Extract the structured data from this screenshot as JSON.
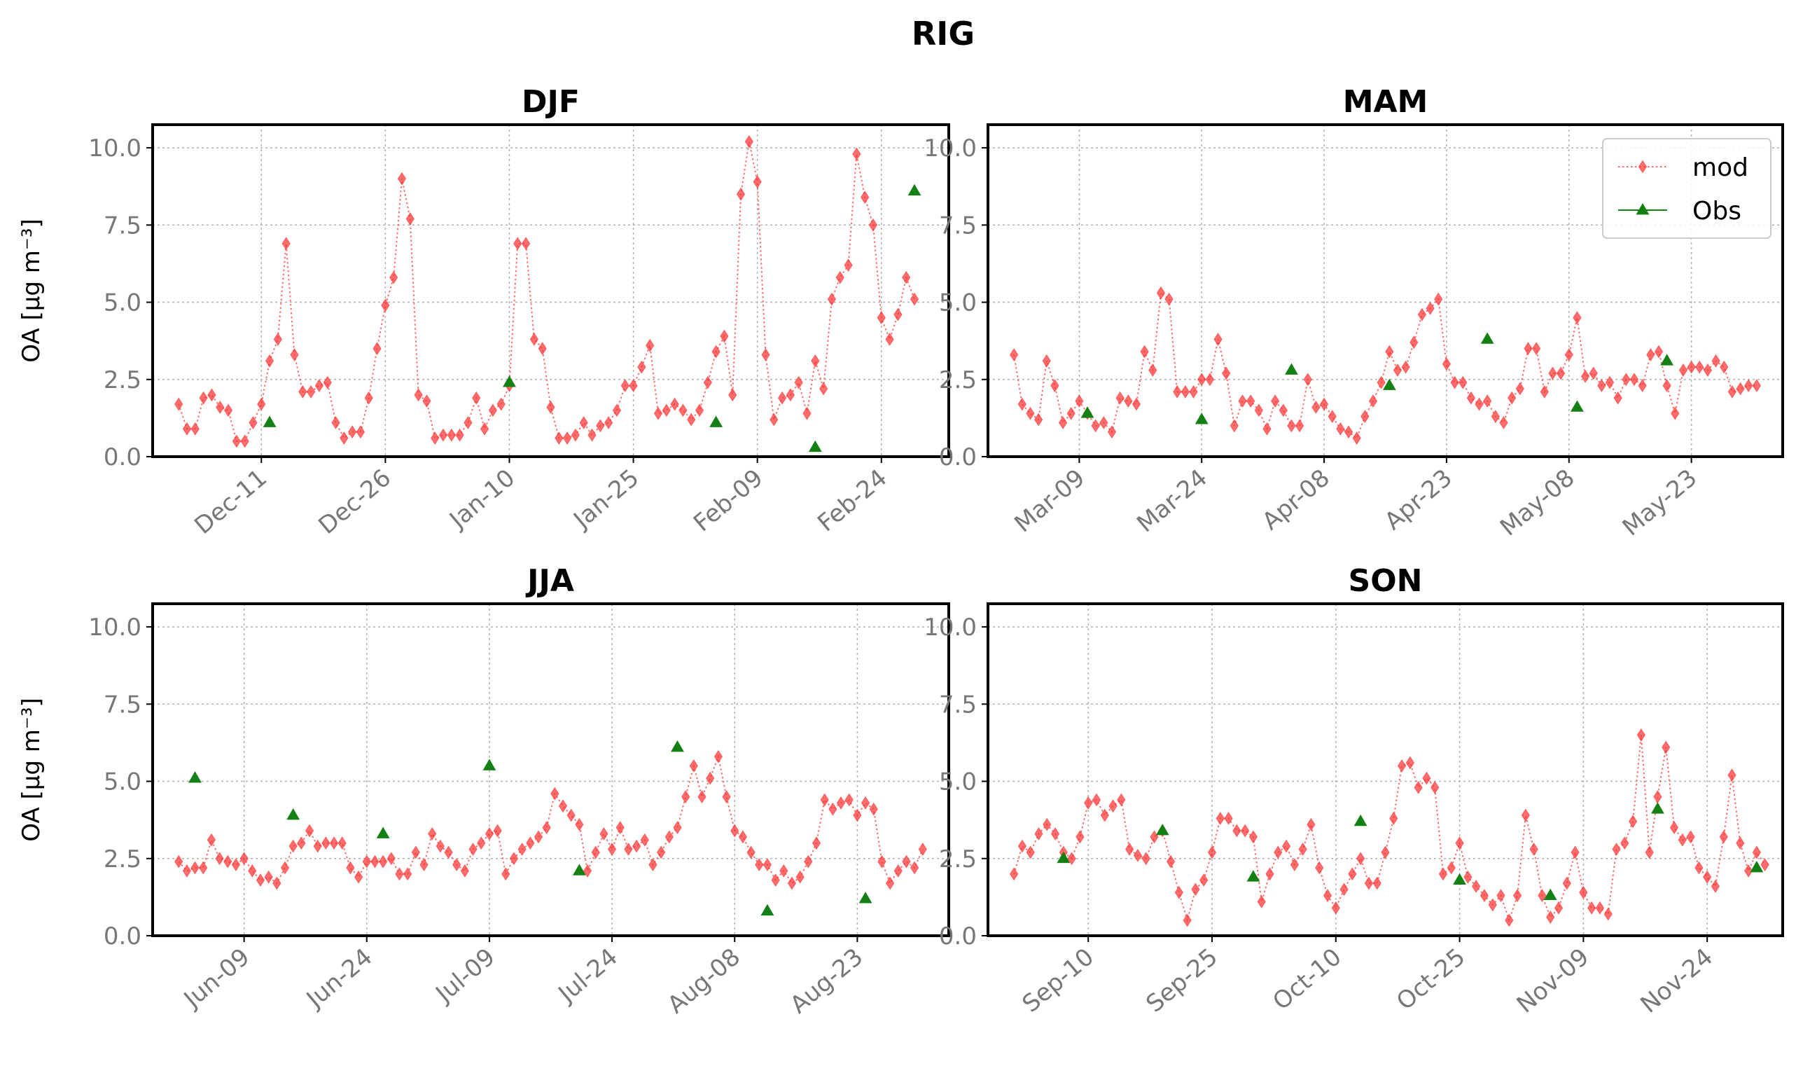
{
  "suptitle": "RIG",
  "legend": {
    "mod_label": "mod",
    "obs_label": "Obs",
    "placement": "top-right of MAM panel"
  },
  "colors": {
    "mod": "#ff3030",
    "obs": "#138013",
    "frame": "#000000",
    "grid": "#b0b0b0",
    "tick": "#777777"
  },
  "chart_data": [
    {
      "panel": "DJF",
      "type": "line",
      "title": "DJF",
      "ylabel": "OA [μg m⁻³]",
      "ylim": [
        0,
        10.75
      ],
      "yticks": [
        "0.0",
        "2.5",
        "5.0",
        "7.5",
        "10.0"
      ],
      "grid": true,
      "xlim": [
        "2019-12-01",
        "2020-02-29"
      ],
      "xticks": [
        {
          "date": "2019-12-11",
          "label": "Dec-11"
        },
        {
          "date": "2019-12-26",
          "label": "Dec-26"
        },
        {
          "date": "2020-01-10",
          "label": "Jan-10"
        },
        {
          "date": "2020-01-25",
          "label": "Jan-25"
        },
        {
          "date": "2020-02-09",
          "label": "Feb-09"
        },
        {
          "date": "2020-02-24",
          "label": "Feb-24"
        }
      ],
      "series": [
        {
          "name": "mod",
          "style": "dotted-diamond",
          "start": "2019-12-01",
          "values": [
            1.7,
            0.9,
            0.9,
            1.9,
            2.0,
            1.6,
            1.5,
            0.5,
            0.5,
            1.1,
            1.7,
            3.1,
            3.8,
            6.9,
            3.3,
            2.1,
            2.1,
            2.3,
            2.4,
            1.1,
            0.6,
            0.8,
            0.8,
            1.9,
            3.5,
            4.9,
            5.8,
            9.0,
            7.7,
            2.0,
            1.8,
            0.6,
            0.7,
            0.7,
            0.7,
            1.1,
            1.9,
            0.9,
            1.5,
            1.7,
            2.3,
            6.9,
            6.9,
            3.8,
            3.5,
            1.6,
            0.6,
            0.6,
            0.7,
            1.1,
            0.7,
            1.0,
            1.1,
            1.5,
            2.3,
            2.3,
            2.9,
            3.6,
            1.4,
            1.5,
            1.7,
            1.5,
            1.2,
            1.5,
            2.4,
            3.4,
            3.9,
            2.0,
            8.5,
            10.2,
            8.9,
            3.3,
            1.2,
            1.9,
            2.0,
            2.4,
            1.4,
            3.1,
            2.2,
            5.1,
            5.8,
            6.2,
            9.8,
            8.4,
            7.5,
            4.5,
            3.8,
            4.6,
            5.8,
            5.1
          ]
        },
        {
          "name": "Obs",
          "style": "triangle",
          "points": [
            [
              "2019-12-12",
              1.1
            ],
            [
              "2020-01-10",
              2.4
            ],
            [
              "2020-02-04",
              1.1
            ],
            [
              "2020-02-16",
              0.3
            ],
            [
              "2020-02-28",
              8.6
            ]
          ]
        }
      ]
    },
    {
      "panel": "MAM",
      "type": "line",
      "title": "MAM",
      "ylabel": "",
      "ylim": [
        0,
        10.75
      ],
      "yticks": [
        "0.0",
        "2.5",
        "5.0",
        "7.5",
        "10.0"
      ],
      "grid": true,
      "xlim": [
        "2020-03-01",
        "2020-05-31"
      ],
      "xticks": [
        {
          "date": "2020-03-09",
          "label": "Mar-09"
        },
        {
          "date": "2020-03-24",
          "label": "Mar-24"
        },
        {
          "date": "2020-04-08",
          "label": "Apr-08"
        },
        {
          "date": "2020-04-23",
          "label": "Apr-23"
        },
        {
          "date": "2020-05-08",
          "label": "May-08"
        },
        {
          "date": "2020-05-23",
          "label": "May-23"
        }
      ],
      "series": [
        {
          "name": "mod",
          "style": "dotted-diamond",
          "start": "2020-03-01",
          "values": [
            3.3,
            1.7,
            1.4,
            1.2,
            3.1,
            2.3,
            1.1,
            1.4,
            1.8,
            1.4,
            1.0,
            1.1,
            0.8,
            1.9,
            1.8,
            1.7,
            3.4,
            2.8,
            5.3,
            5.1,
            2.1,
            2.1,
            2.1,
            2.5,
            2.5,
            3.8,
            2.7,
            1.0,
            1.8,
            1.8,
            1.5,
            0.9,
            1.8,
            1.5,
            1.0,
            1.0,
            2.5,
            1.6,
            1.7,
            1.3,
            0.9,
            0.8,
            0.6,
            1.3,
            1.8,
            2.4,
            3.4,
            2.8,
            2.9,
            3.7,
            4.6,
            4.8,
            5.1,
            3.0,
            2.4,
            2.4,
            1.9,
            1.7,
            1.8,
            1.3,
            1.1,
            1.9,
            2.2,
            3.5,
            3.5,
            2.1,
            2.7,
            2.7,
            3.3,
            4.5,
            2.6,
            2.7,
            2.3,
            2.4,
            1.9,
            2.5,
            2.5,
            2.3,
            3.3,
            3.4,
            2.3,
            1.4,
            2.8,
            2.9,
            2.9,
            2.8,
            3.1,
            2.9,
            2.1,
            2.2,
            2.3,
            2.3
          ]
        },
        {
          "name": "Obs",
          "style": "triangle",
          "points": [
            [
              "2020-03-10",
              1.4
            ],
            [
              "2020-03-24",
              1.2
            ],
            [
              "2020-04-04",
              2.8
            ],
            [
              "2020-04-16",
              2.3
            ],
            [
              "2020-04-28",
              3.8
            ],
            [
              "2020-05-09",
              1.6
            ],
            [
              "2020-05-20",
              3.1
            ]
          ]
        }
      ]
    },
    {
      "panel": "JJA",
      "type": "line",
      "title": "JJA",
      "ylabel": "OA [μg m⁻³]",
      "ylim": [
        0,
        10.75
      ],
      "yticks": [
        "0.0",
        "2.5",
        "5.0",
        "7.5",
        "10.0"
      ],
      "grid": true,
      "xlim": [
        "2020-06-01",
        "2020-08-31"
      ],
      "xticks": [
        {
          "date": "2020-06-09",
          "label": "Jun-09"
        },
        {
          "date": "2020-06-24",
          "label": "Jun-24"
        },
        {
          "date": "2020-07-09",
          "label": "Jul-09"
        },
        {
          "date": "2020-07-24",
          "label": "Jul-24"
        },
        {
          "date": "2020-08-08",
          "label": "Aug-08"
        },
        {
          "date": "2020-08-23",
          "label": "Aug-23"
        }
      ],
      "series": [
        {
          "name": "mod",
          "style": "dotted-diamond",
          "start": "2020-06-01",
          "values": [
            2.4,
            2.1,
            2.2,
            2.2,
            3.1,
            2.5,
            2.4,
            2.3,
            2.5,
            2.1,
            1.8,
            1.9,
            1.7,
            2.2,
            2.9,
            3.0,
            3.4,
            2.9,
            3.0,
            3.0,
            3.0,
            2.2,
            1.9,
            2.4,
            2.4,
            2.4,
            2.5,
            2.0,
            2.0,
            2.7,
            2.3,
            3.3,
            2.9,
            2.7,
            2.3,
            2.1,
            2.8,
            3.0,
            3.3,
            3.4,
            2.0,
            2.5,
            2.8,
            3.0,
            3.2,
            3.5,
            4.6,
            4.2,
            3.9,
            3.6,
            2.1,
            2.7,
            3.3,
            2.8,
            3.5,
            2.8,
            2.9,
            3.1,
            2.3,
            2.7,
            3.2,
            3.5,
            4.5,
            5.5,
            4.5,
            5.1,
            5.8,
            4.5,
            3.4,
            3.2,
            2.7,
            2.3,
            2.3,
            1.8,
            2.1,
            1.7,
            1.9,
            2.4,
            3.0,
            4.4,
            4.1,
            4.3,
            4.4,
            3.9,
            4.3,
            4.1,
            2.4,
            1.7,
            2.1,
            2.4,
            2.2,
            2.8
          ]
        },
        {
          "name": "Obs",
          "style": "triangle",
          "points": [
            [
              "2020-06-03",
              5.1
            ],
            [
              "2020-06-15",
              3.9
            ],
            [
              "2020-06-26",
              3.3
            ],
            [
              "2020-07-09",
              5.5
            ],
            [
              "2020-07-20",
              2.1
            ],
            [
              "2020-08-01",
              6.1
            ],
            [
              "2020-08-12",
              0.8
            ],
            [
              "2020-08-24",
              1.2
            ]
          ]
        }
      ]
    },
    {
      "panel": "SON",
      "type": "line",
      "title": "SON",
      "ylabel": "",
      "ylim": [
        0,
        10.75
      ],
      "yticks": [
        "0.0",
        "2.5",
        "5.0",
        "7.5",
        "10.0"
      ],
      "grid": true,
      "xlim": [
        "2020-09-01",
        "2020-11-30"
      ],
      "xticks": [
        {
          "date": "2020-09-10",
          "label": "Sep-10"
        },
        {
          "date": "2020-09-25",
          "label": "Sep-25"
        },
        {
          "date": "2020-10-10",
          "label": "Oct-10"
        },
        {
          "date": "2020-10-25",
          "label": "Oct-25"
        },
        {
          "date": "2020-11-09",
          "label": "Nov-09"
        },
        {
          "date": "2020-11-24",
          "label": "Nov-24"
        }
      ],
      "series": [
        {
          "name": "mod",
          "style": "dotted-diamond",
          "start": "2020-09-01",
          "values": [
            2.0,
            2.9,
            2.7,
            3.3,
            3.6,
            3.3,
            2.7,
            2.5,
            3.2,
            4.3,
            4.4,
            3.9,
            4.2,
            4.4,
            2.8,
            2.6,
            2.5,
            3.2,
            3.4,
            2.4,
            1.4,
            0.5,
            1.5,
            1.8,
            2.7,
            3.8,
            3.8,
            3.4,
            3.4,
            3.2,
            1.1,
            2.0,
            2.7,
            2.9,
            2.3,
            2.8,
            3.6,
            2.2,
            1.3,
            0.9,
            1.5,
            2.0,
            2.5,
            1.7,
            1.7,
            2.7,
            3.8,
            5.5,
            5.6,
            4.8,
            5.1,
            4.8,
            2.0,
            2.2,
            3.0,
            1.9,
            1.6,
            1.3,
            1.0,
            1.3,
            0.5,
            1.3,
            3.9,
            2.8,
            1.3,
            0.6,
            0.9,
            1.7,
            2.7,
            1.4,
            0.9,
            0.9,
            0.7,
            2.8,
            3.0,
            3.7,
            6.5,
            2.7,
            4.5,
            6.1,
            3.5,
            3.1,
            3.2,
            2.2,
            1.9,
            1.6,
            3.2,
            5.2,
            3.0,
            2.1,
            2.7,
            2.3
          ]
        },
        {
          "name": "Obs",
          "style": "triangle",
          "points": [
            [
              "2020-09-07",
              2.5
            ],
            [
              "2020-09-19",
              3.4
            ],
            [
              "2020-09-30",
              1.9
            ],
            [
              "2020-10-13",
              3.7
            ],
            [
              "2020-10-25",
              1.8
            ],
            [
              "2020-11-05",
              1.3
            ],
            [
              "2020-11-18",
              4.1
            ],
            [
              "2020-11-30",
              2.2
            ]
          ]
        }
      ]
    }
  ]
}
